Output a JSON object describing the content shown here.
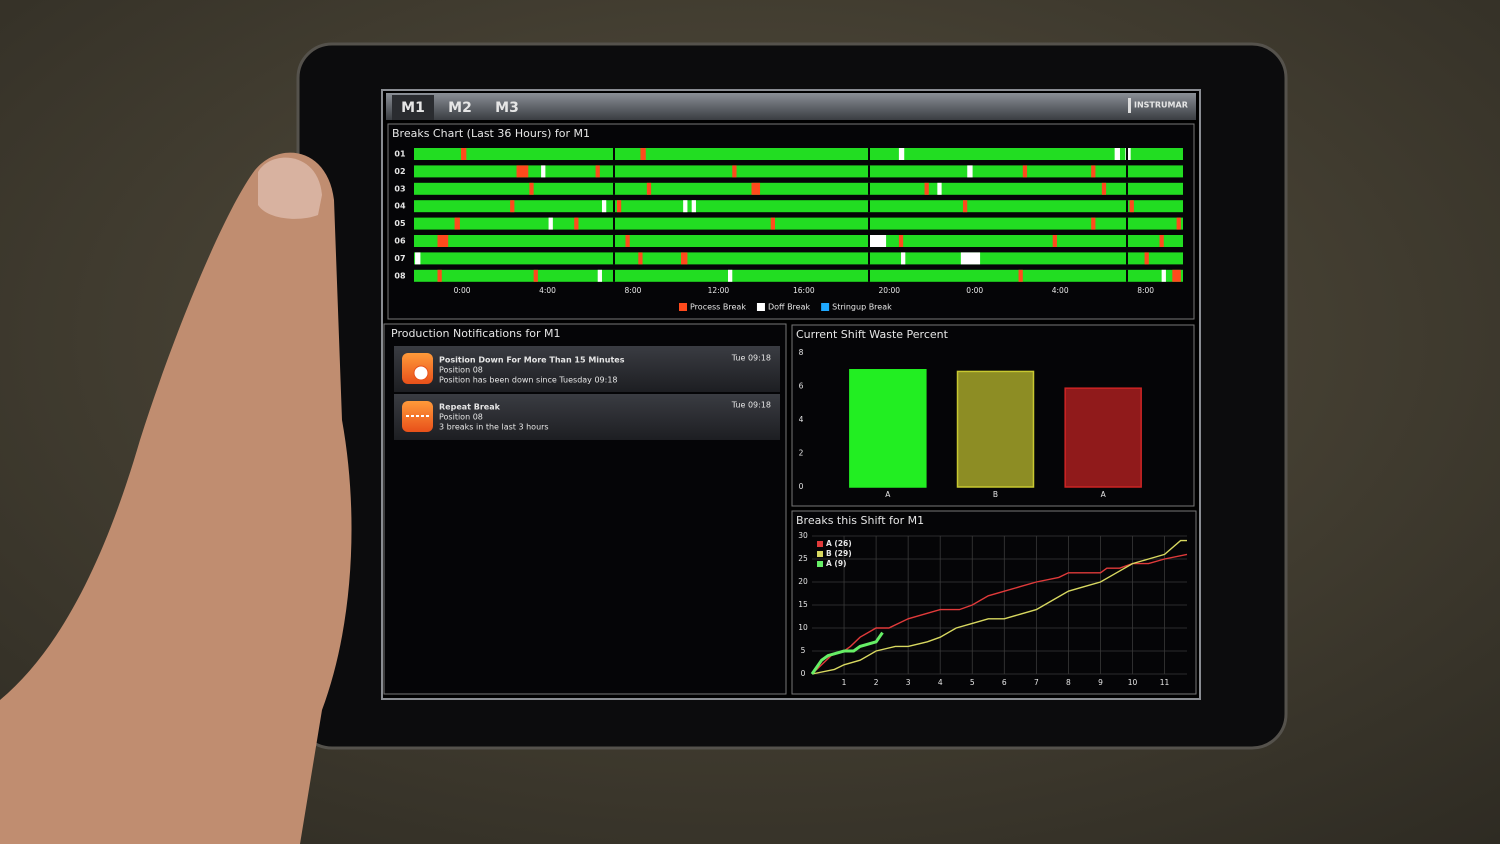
{
  "tabs": [
    "M1",
    "M2",
    "M3"
  ],
  "logo": "INSTRUMAR",
  "notifications": {
    "title": "Production Notifications for M1",
    "items": [
      {
        "title": "Position Down For More Than 15 Minutes",
        "line1": "Position 08",
        "line2": "Position has been down since Tuesday 09:18",
        "time": "Tue 09:18"
      },
      {
        "title": "Repeat Break",
        "line1": "Position 08",
        "line2": "3 breaks in the last 3 hours",
        "time": "Tue 09:18"
      }
    ]
  },
  "chart_data": [
    {
      "type": "timeline",
      "title": "Breaks Chart (Last 36 Hours) for M1",
      "color": "#22dd22",
      "xlim": [
        0,
        36
      ],
      "xticks": [
        {
          "value": 2.25,
          "label": "0:00"
        },
        {
          "value": 6.25,
          "label": "4:00"
        },
        {
          "value": 10.25,
          "label": "8:00"
        },
        {
          "value": 14.25,
          "label": "12:00"
        },
        {
          "value": 18.25,
          "label": "16:00"
        },
        {
          "value": 22.25,
          "label": "20:00"
        },
        {
          "value": 26.25,
          "label": "0:00"
        },
        {
          "value": 30.25,
          "label": "4:00"
        },
        {
          "value": 34.25,
          "label": "8:00"
        }
      ],
      "legend": [
        {
          "name": "Process Break",
          "color": "#ff4a1c"
        },
        {
          "name": "Doff Break",
          "color": "#ffffff"
        },
        {
          "name": "Stringup Break",
          "color": "#1ea8ff"
        }
      ],
      "rows": [
        {
          "label": "01",
          "breaks": [
            {
              "start": 2.2,
              "end": 2.45,
              "type": 0
            },
            {
              "start": 10.6,
              "end": 10.85,
              "type": 0
            },
            {
              "start": 22.7,
              "end": 22.95,
              "type": 1
            },
            {
              "start": 32.8,
              "end": 33.05,
              "type": 1
            },
            {
              "start": 33.3,
              "end": 33.55,
              "type": 1
            }
          ]
        },
        {
          "label": "02",
          "breaks": [
            {
              "start": 4.8,
              "end": 5.35,
              "type": 0
            },
            {
              "start": 5.95,
              "end": 6.15,
              "type": 1
            },
            {
              "start": 8.5,
              "end": 8.7,
              "type": 0
            },
            {
              "start": 14.9,
              "end": 15.1,
              "type": 0
            },
            {
              "start": 25.9,
              "end": 26.15,
              "type": 1
            },
            {
              "start": 28.5,
              "end": 28.7,
              "type": 0
            },
            {
              "start": 31.7,
              "end": 31.9,
              "type": 0
            }
          ]
        },
        {
          "label": "03",
          "breaks": [
            {
              "start": 5.4,
              "end": 5.6,
              "type": 0
            },
            {
              "start": 10.9,
              "end": 11.1,
              "type": 0
            },
            {
              "start": 15.8,
              "end": 16.2,
              "type": 0
            },
            {
              "start": 23.9,
              "end": 24.1,
              "type": 0
            },
            {
              "start": 24.5,
              "end": 24.7,
              "type": 1
            },
            {
              "start": 32.2,
              "end": 32.4,
              "type": 0
            }
          ]
        },
        {
          "label": "04",
          "breaks": [
            {
              "start": 4.5,
              "end": 4.7,
              "type": 0
            },
            {
              "start": 8.8,
              "end": 9.0,
              "type": 1
            },
            {
              "start": 9.5,
              "end": 9.7,
              "type": 0
            },
            {
              "start": 12.6,
              "end": 12.8,
              "type": 1
            },
            {
              "start": 13.0,
              "end": 13.2,
              "type": 1
            },
            {
              "start": 25.7,
              "end": 25.9,
              "type": 0
            },
            {
              "start": 33.5,
              "end": 33.7,
              "type": 0
            }
          ]
        },
        {
          "label": "05",
          "breaks": [
            {
              "start": 1.9,
              "end": 2.15,
              "type": 0
            },
            {
              "start": 6.3,
              "end": 6.5,
              "type": 1
            },
            {
              "start": 7.5,
              "end": 7.7,
              "type": 0
            },
            {
              "start": 16.7,
              "end": 16.9,
              "type": 0
            },
            {
              "start": 31.7,
              "end": 31.9,
              "type": 0
            },
            {
              "start": 35.7,
              "end": 35.9,
              "type": 0
            }
          ]
        },
        {
          "label": "06",
          "breaks": [
            {
              "start": 1.1,
              "end": 1.6,
              "type": 0
            },
            {
              "start": 9.9,
              "end": 10.1,
              "type": 0
            },
            {
              "start": 21.3,
              "end": 22.1,
              "type": 1
            },
            {
              "start": 22.7,
              "end": 22.9,
              "type": 0
            },
            {
              "start": 29.9,
              "end": 30.1,
              "type": 0
            },
            {
              "start": 34.9,
              "end": 35.1,
              "type": 0
            }
          ]
        },
        {
          "label": "07",
          "breaks": [
            {
              "start": 0.05,
              "end": 0.3,
              "type": 1
            },
            {
              "start": 10.5,
              "end": 10.7,
              "type": 0
            },
            {
              "start": 12.5,
              "end": 12.8,
              "type": 0
            },
            {
              "start": 22.8,
              "end": 23.0,
              "type": 1
            },
            {
              "start": 25.6,
              "end": 26.5,
              "type": 1
            },
            {
              "start": 34.2,
              "end": 34.4,
              "type": 0
            }
          ]
        },
        {
          "label": "08",
          "breaks": [
            {
              "start": 1.1,
              "end": 1.3,
              "type": 0
            },
            {
              "start": 5.6,
              "end": 5.8,
              "type": 0
            },
            {
              "start": 8.6,
              "end": 8.8,
              "type": 1
            },
            {
              "start": 14.7,
              "end": 14.9,
              "type": 1
            },
            {
              "start": 28.3,
              "end": 28.5,
              "type": 0
            },
            {
              "start": 35.0,
              "end": 35.2,
              "type": 1
            },
            {
              "start": 35.5,
              "end": 35.9,
              "type": 0
            }
          ]
        }
      ]
    },
    {
      "type": "bar",
      "title": "Current Shift Waste Percent",
      "categories": [
        "A",
        "B",
        "A"
      ],
      "values": [
        7.0,
        6.9,
        5.9
      ],
      "colors": [
        "#22ee22",
        "#c8c830",
        "#cc2424"
      ],
      "ylim": [
        0,
        8
      ],
      "yticks": [
        0,
        2,
        4,
        6,
        8
      ]
    },
    {
      "type": "line",
      "title": "Breaks this Shift for M1",
      "xlim": [
        0,
        11.7
      ],
      "xticks": [
        1,
        2,
        3,
        4,
        5,
        6,
        7,
        8,
        9,
        10,
        11
      ],
      "ylim": [
        0,
        30
      ],
      "yticks": [
        0,
        5,
        10,
        15,
        20,
        25,
        30
      ],
      "grid": true,
      "series": [
        {
          "name": "A (26)",
          "color": "#e03a3a",
          "width": 1.4,
          "x": [
            0,
            0.3,
            0.6,
            1.0,
            1.2,
            1.5,
            2.0,
            2.4,
            2.7,
            3.0,
            3.5,
            4.0,
            4.6,
            5.0,
            5.5,
            6.0,
            6.5,
            7.0,
            7.7,
            8.0,
            9.0,
            9.2,
            9.6,
            10.0,
            10.5,
            11.0,
            11.7
          ],
          "values": [
            0,
            2,
            4,
            5,
            6,
            8,
            10,
            10,
            11,
            12,
            13,
            14,
            14,
            15,
            17,
            18,
            19,
            20,
            21,
            22,
            22,
            23,
            23,
            24,
            24,
            25,
            26
          ]
        },
        {
          "name": "B (29)",
          "color": "#d8d860",
          "width": 1.4,
          "x": [
            0,
            0.7,
            1.0,
            1.5,
            2.0,
            2.6,
            3.0,
            3.6,
            4.0,
            4.5,
            5.0,
            5.5,
            6.0,
            6.5,
            7.0,
            7.5,
            8.0,
            8.5,
            9.0,
            9.5,
            10.0,
            10.5,
            11.0,
            11.5,
            11.7
          ],
          "values": [
            0,
            1,
            2,
            3,
            5,
            6,
            6,
            7,
            8,
            10,
            11,
            12,
            12,
            13,
            14,
            16,
            18,
            19,
            20,
            22,
            24,
            25,
            26,
            29,
            29
          ]
        },
        {
          "name": "A (9)",
          "color": "#66ee66",
          "width": 3,
          "x": [
            0,
            0.3,
            0.5,
            1.0,
            1.3,
            1.5,
            2.0,
            2.2
          ],
          "values": [
            0,
            3,
            4,
            5,
            5,
            6,
            7,
            9
          ]
        }
      ]
    }
  ]
}
